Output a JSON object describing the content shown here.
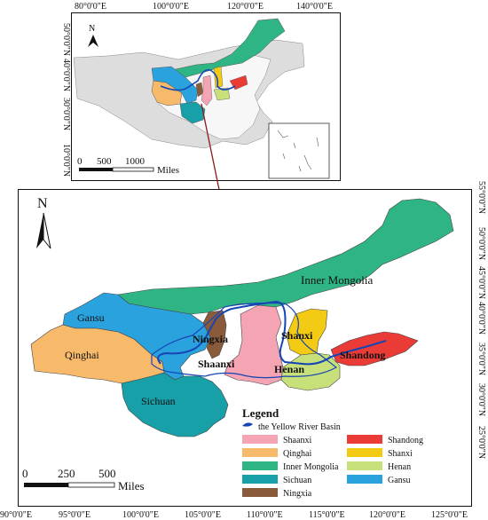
{
  "inset_map": {
    "top_ticks": [
      "80°0'0\"E",
      "100°0'0\"E",
      "120°0'0\"E",
      "140°0'0\"E"
    ],
    "left_ticks": [
      "50°0'0\"N",
      "40°0'0\"N",
      "30°0'0\"N",
      "10°0'0\"N"
    ],
    "north_label": "N",
    "scale": {
      "labels": [
        "0",
        "500",
        "1000"
      ],
      "unit": "Miles"
    }
  },
  "main_map": {
    "bottom_ticks": [
      "90°0'0\"E",
      "95°0'0\"E",
      "100°0'0\"E",
      "105°0'0\"E",
      "110°0'0\"E",
      "115°0'0\"E",
      "120°0'0\"E",
      "125°0'0\"E"
    ],
    "right_ticks": [
      "55°0'0\"N",
      "50°0'0\"N",
      "45°0'0\"N",
      "40°0'0\"N",
      "35°0'0\"N",
      "30°0'0\"N",
      "25°0'0\"N"
    ],
    "north_label": "N",
    "scale": {
      "labels": [
        "0",
        "250",
        "500"
      ],
      "unit": "Miles"
    },
    "province_labels": {
      "inner_mongolia": "Inner Mongolia",
      "gansu": "Gansu",
      "qinghai": "Qinghai",
      "ningxia": "Ningxia",
      "shaanxi": "Shaanxi",
      "shanxi": "Shanxi",
      "henan": "Henan",
      "shandong": "Shandong",
      "sichuan": "Sichuan"
    }
  },
  "legend": {
    "title": "Legend",
    "river": "the Yellow River Basin",
    "items": [
      {
        "label": "Shaanxi",
        "color": "#f4a4b3"
      },
      {
        "label": "Qinghai",
        "color": "#f7b96a"
      },
      {
        "label": "Inner Mongolia",
        "color": "#2fb583"
      },
      {
        "label": "Sichuan",
        "color": "#17a0a8"
      },
      {
        "label": "Ningxia",
        "color": "#8a5b3a"
      },
      {
        "label": "Shandong",
        "color": "#ea3b37"
      },
      {
        "label": "Shanxi",
        "color": "#f4cb14"
      },
      {
        "label": "Henan",
        "color": "#c7e07a"
      },
      {
        "label": "Gansu",
        "color": "#2aa2de"
      }
    ]
  },
  "colors": {
    "river": "#1545b5",
    "arrow": "#8b1a1a",
    "other_land": "#dddddd"
  }
}
